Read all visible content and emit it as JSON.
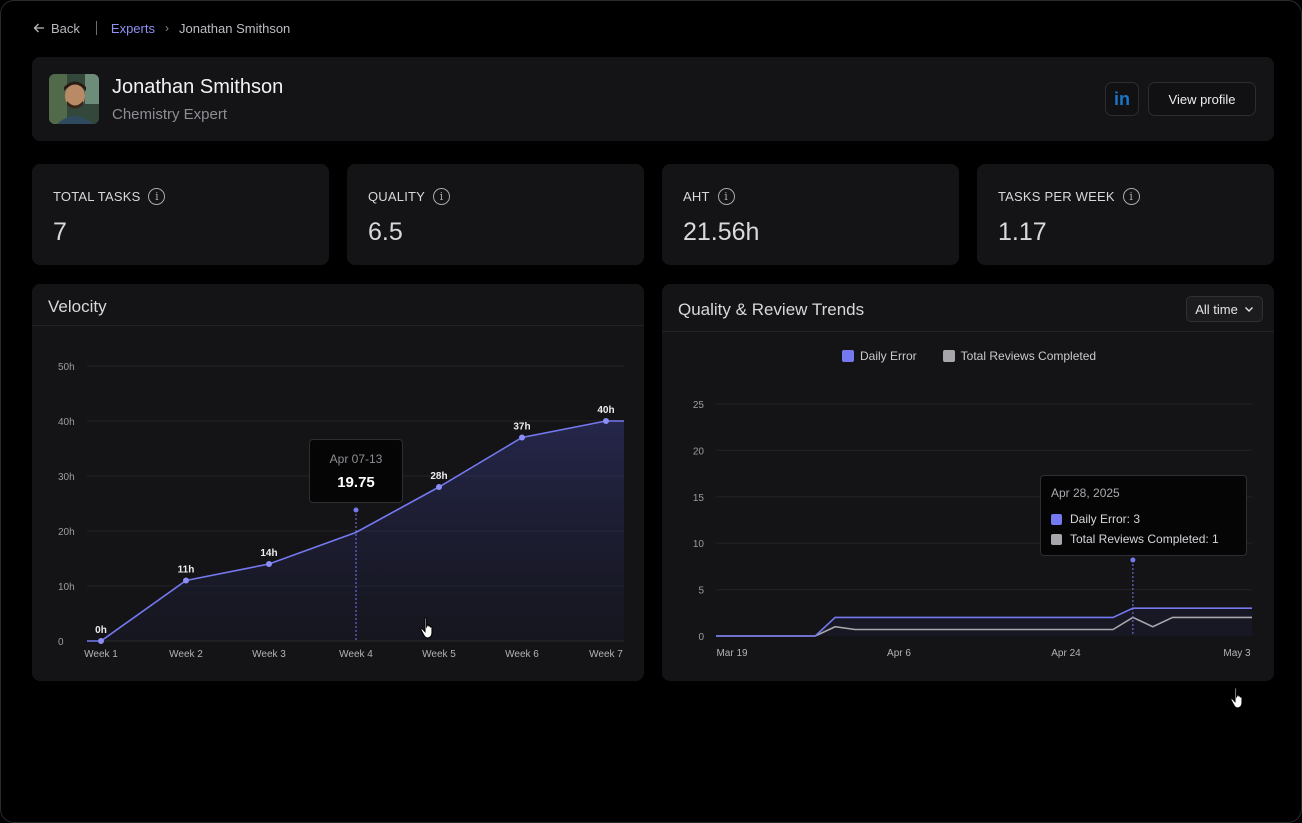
{
  "breadcrumb": {
    "back": "Back",
    "parent": "Experts",
    "current": "Jonathan Smithson"
  },
  "profile": {
    "name": "Jonathan Smithson",
    "role": "Chemistry Expert",
    "linkedin_label": "in",
    "view_profile": "View profile"
  },
  "stats": [
    {
      "label": "TOTAL TASKS",
      "value": "7"
    },
    {
      "label": "QUALITY",
      "value": "6.5"
    },
    {
      "label": "AHT",
      "value": "21.56h"
    },
    {
      "label": "TASKS PER WEEK",
      "value": "1.17"
    }
  ],
  "velocity": {
    "title": "Velocity",
    "tooltip": {
      "date": "Apr 07-13",
      "value": "19.75"
    }
  },
  "trends": {
    "title": "Quality & Review Trends",
    "range": "All time",
    "tooltip": {
      "date": "Apr 28, 2025",
      "daily_error": "Daily Error: 3",
      "reviews": "Total Reviews Completed:  1"
    }
  },
  "colors": {
    "accent": "#7479f0",
    "grey_series": "#a7a7ab",
    "card": "#141416"
  },
  "chart_data": [
    {
      "type": "area",
      "categories": [
        "Week 1",
        "Week 2",
        "Week 3",
        "Week 4",
        "Week 5",
        "Week 6",
        "Week 7"
      ],
      "values": [
        0,
        11,
        14,
        19.75,
        28,
        37,
        40
      ],
      "data_labels": [
        "0h",
        "11h",
        "14h",
        "",
        "28h",
        "37h",
        "40h"
      ],
      "yticks": [
        "0",
        "10h",
        "20h",
        "30h",
        "40h",
        "50h"
      ],
      "ylim": [
        0,
        50
      ],
      "grid": true
    },
    {
      "type": "line",
      "x_ticks": [
        "Mar 19",
        "Apr 6",
        "Apr 24",
        "May 3"
      ],
      "yticks": [
        "0",
        "5",
        "10",
        "15",
        "20",
        "25"
      ],
      "ylim": [
        0,
        25
      ],
      "series": [
        {
          "name": "Daily Error",
          "color": "#7479f0",
          "values": [
            0,
            0,
            0,
            0,
            0,
            0,
            2,
            2,
            2,
            2,
            2,
            2,
            2,
            2,
            2,
            2,
            2,
            2,
            2,
            2,
            2,
            3,
            3,
            3,
            3,
            3,
            3,
            3
          ]
        },
        {
          "name": "Total Reviews Completed",
          "color": "#a7a7ab",
          "values": [
            0,
            0,
            0,
            0,
            0,
            0,
            1,
            0.7,
            0.7,
            0.7,
            0.7,
            0.7,
            0.7,
            0.7,
            0.7,
            0.7,
            0.7,
            0.7,
            0.7,
            0.7,
            0.7,
            2,
            1,
            2,
            2,
            2,
            2,
            2
          ]
        }
      ],
      "grid": true
    }
  ]
}
